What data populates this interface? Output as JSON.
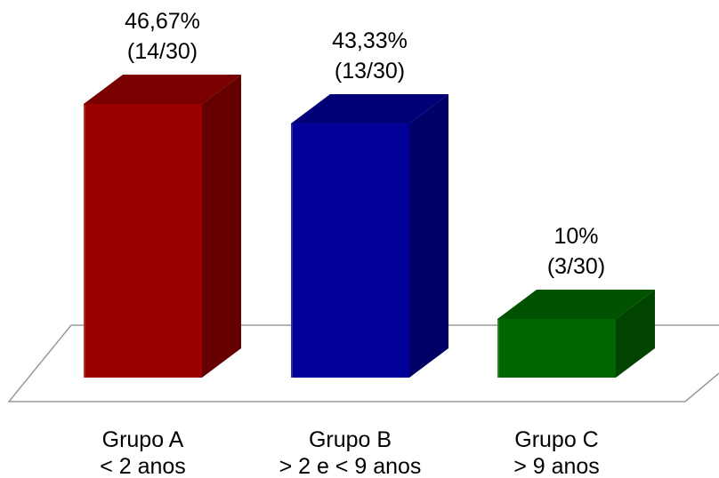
{
  "chart_data": {
    "type": "bar",
    "style": "3d",
    "title": "",
    "xlabel": "",
    "ylabel": "",
    "ylim": [
      0,
      50
    ],
    "grid": false,
    "legend": "none",
    "categories": [
      {
        "line1": "Grupo A",
        "line2": "< 2 anos"
      },
      {
        "line1": "Grupo B",
        "line2": "> 2 e < 9 anos"
      },
      {
        "line1": "Grupo C",
        "line2": "> 9 anos"
      }
    ],
    "values": [
      46.67,
      43.33,
      10
    ],
    "data_labels": [
      {
        "percent": "46,67%",
        "fraction": "(14/30)"
      },
      {
        "percent": "43,33%",
        "fraction": "(13/30)"
      },
      {
        "percent": "10%",
        "fraction": "(3/30)"
      }
    ],
    "colors": [
      {
        "front": "#990000",
        "top": "#7a0000",
        "side": "#660000"
      },
      {
        "front": "#000099",
        "top": "#000077",
        "side": "#000066"
      },
      {
        "front": "#006600",
        "top": "#005200",
        "side": "#004400"
      }
    ],
    "floor_color": "#ffffff",
    "floor_stroke": "#9a9a9a"
  }
}
